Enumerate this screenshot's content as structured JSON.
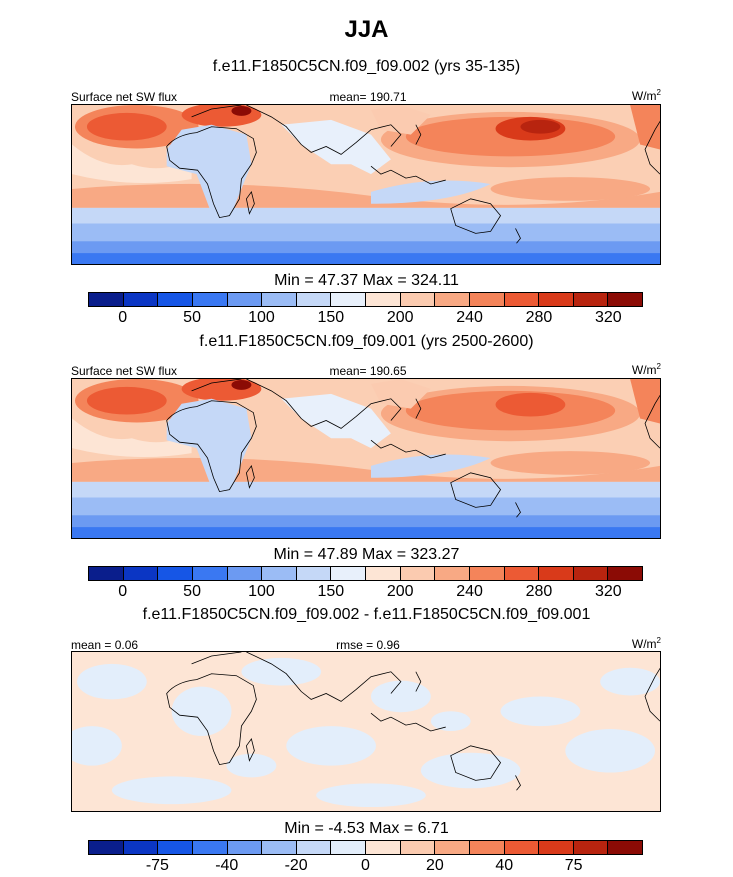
{
  "title": "JJA",
  "panels": [
    {
      "subtitle": "f.e11.F1850C5CN.f09_f09.002 (yrs 35-135)",
      "left_label": "Surface net SW flux",
      "center_label": "mean= 190.71",
      "units_label": "W/m",
      "units_sup": "2",
      "minmax": "Min =  47.37 Max = 324.11",
      "map_type": "filled-contour",
      "colorbar": "absolute"
    },
    {
      "subtitle": "f.e11.F1850C5CN.f09_f09.001 (yrs 2500-2600)",
      "left_label": "Surface net SW flux",
      "center_label": "mean= 190.65",
      "units_label": "W/m",
      "units_sup": "2",
      "minmax": "Min =  47.89 Max = 323.27",
      "map_type": "filled-contour",
      "colorbar": "absolute"
    },
    {
      "subtitle": "f.e11.F1850C5CN.f09_f09.002 - f.e11.F1850C5CN.f09_f09.001",
      "left_label": "mean =   0.06",
      "center_label": "rmse =   0.96",
      "units_label": "W/m",
      "units_sup": "2",
      "minmax": "Min =  -4.53 Max =   6.71",
      "map_type": "filled-contour",
      "colorbar": "difference"
    }
  ],
  "colorbars": {
    "absolute": {
      "colors": [
        "#0a1e8c",
        "#0b36c4",
        "#1656e6",
        "#3a78f2",
        "#6c9af2",
        "#9bbcf5",
        "#c5d8f7",
        "#e8f0fb",
        "#fde5d5",
        "#fbcbb0",
        "#f8a984",
        "#f4845a",
        "#ec5a34",
        "#d93a1a",
        "#b8240f",
        "#8b0b05"
      ],
      "ticks": [
        "0",
        "50",
        "100",
        "150",
        "200",
        "240",
        "280",
        "320"
      ]
    },
    "difference": {
      "colors": [
        "#0a1e8c",
        "#0b36c4",
        "#1656e6",
        "#3a78f2",
        "#6c9af2",
        "#9bbcf5",
        "#c5d8f7",
        "#e3eefb",
        "#fde5d5",
        "#fbcbb0",
        "#f8a984",
        "#f4845a",
        "#ec5a34",
        "#d93a1a",
        "#b8240f",
        "#8b0b05"
      ],
      "ticks": [
        "-75",
        "-40",
        "-20",
        "0",
        "20",
        "40",
        "75"
      ]
    }
  }
}
